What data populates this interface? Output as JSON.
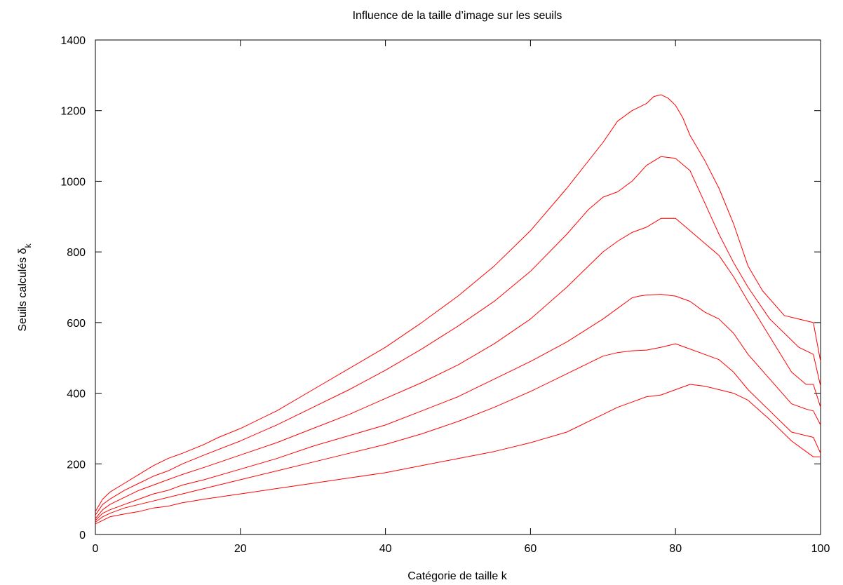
{
  "chart_data": {
    "type": "line",
    "title": "Influence de la taille d’image sur les seuils",
    "xlabel": "Catégorie de taille k",
    "ylabel_main": "Seuils calculés δ",
    "ylabel_sub": "k",
    "xlim": [
      0,
      100
    ],
    "ylim": [
      0,
      1400
    ],
    "x_ticks": [
      0,
      20,
      40,
      60,
      80,
      100
    ],
    "y_ticks": [
      0,
      200,
      400,
      600,
      800,
      1000,
      1200,
      1400
    ],
    "grid": false,
    "legend": "none",
    "color": "#ff0000",
    "series": [
      {
        "x": [
          0,
          1,
          2,
          4,
          6,
          8,
          10,
          12,
          15,
          17,
          20,
          25,
          30,
          35,
          40,
          45,
          50,
          55,
          60,
          65,
          70,
          72,
          74,
          76,
          77,
          78,
          79,
          80,
          81,
          82,
          84,
          86,
          88,
          90,
          92,
          95,
          99,
          100
        ],
        "values": [
          65,
          100,
          120,
          145,
          170,
          195,
          215,
          230,
          255,
          275,
          300,
          350,
          410,
          470,
          530,
          600,
          675,
          760,
          860,
          980,
          1110,
          1170,
          1200,
          1220,
          1240,
          1245,
          1235,
          1215,
          1180,
          1130,
          1060,
          980,
          880,
          760,
          690,
          620,
          600,
          490
        ]
      },
      {
        "x": [
          0,
          1,
          2,
          4,
          6,
          8,
          10,
          12,
          15,
          20,
          25,
          30,
          35,
          40,
          45,
          50,
          55,
          60,
          65,
          68,
          70,
          72,
          74,
          76,
          78,
          80,
          82,
          84,
          86,
          88,
          90,
          93,
          97,
          99,
          100
        ],
        "values": [
          55,
          85,
          100,
          125,
          145,
          165,
          180,
          200,
          225,
          265,
          310,
          360,
          410,
          465,
          525,
          590,
          660,
          745,
          850,
          920,
          955,
          970,
          1000,
          1045,
          1070,
          1065,
          1030,
          940,
          850,
          770,
          700,
          610,
          530,
          510,
          420
        ]
      },
      {
        "x": [
          0,
          1,
          2,
          4,
          6,
          8,
          10,
          12,
          15,
          20,
          25,
          30,
          35,
          40,
          45,
          50,
          55,
          60,
          65,
          70,
          72,
          74,
          76,
          78,
          80,
          82,
          84,
          86,
          88,
          90,
          93,
          96,
          98,
          99,
          100
        ],
        "values": [
          45,
          70,
          85,
          105,
          125,
          140,
          155,
          170,
          190,
          225,
          260,
          300,
          340,
          385,
          430,
          480,
          540,
          610,
          700,
          800,
          830,
          855,
          870,
          895,
          895,
          860,
          825,
          790,
          730,
          660,
          560,
          460,
          425,
          425,
          360
        ]
      },
      {
        "x": [
          0,
          1,
          2,
          4,
          6,
          8,
          10,
          12,
          15,
          20,
          25,
          30,
          35,
          40,
          45,
          50,
          55,
          60,
          65,
          70,
          72,
          74,
          75,
          76,
          78,
          80,
          82,
          84,
          86,
          88,
          90,
          93,
          96,
          98,
          99,
          100
        ],
        "values": [
          40,
          60,
          70,
          85,
          100,
          115,
          125,
          140,
          155,
          185,
          215,
          250,
          280,
          310,
          350,
          390,
          440,
          490,
          545,
          610,
          640,
          670,
          675,
          678,
          680,
          675,
          660,
          630,
          610,
          570,
          510,
          440,
          370,
          355,
          350,
          310
        ]
      },
      {
        "x": [
          0,
          1,
          2,
          4,
          6,
          8,
          10,
          12,
          15,
          20,
          25,
          30,
          35,
          40,
          45,
          50,
          55,
          60,
          65,
          70,
          72,
          74,
          76,
          78,
          80,
          82,
          84,
          86,
          88,
          90,
          93,
          96,
          98,
          99,
          100
        ],
        "values": [
          35,
          50,
          60,
          75,
          85,
          95,
          105,
          115,
          130,
          155,
          180,
          205,
          230,
          255,
          285,
          320,
          360,
          405,
          455,
          505,
          515,
          520,
          522,
          530,
          540,
          525,
          510,
          495,
          460,
          410,
          350,
          290,
          280,
          275,
          230
        ]
      },
      {
        "x": [
          0,
          1,
          2,
          4,
          6,
          8,
          10,
          12,
          15,
          20,
          25,
          30,
          35,
          40,
          45,
          50,
          55,
          60,
          65,
          70,
          72,
          74,
          76,
          78,
          80,
          82,
          84,
          86,
          88,
          90,
          93,
          96,
          98,
          99,
          100
        ],
        "values": [
          30,
          40,
          50,
          58,
          65,
          75,
          80,
          90,
          100,
          115,
          130,
          145,
          160,
          175,
          195,
          215,
          235,
          260,
          290,
          340,
          360,
          375,
          390,
          395,
          410,
          425,
          420,
          410,
          400,
          380,
          325,
          265,
          235,
          220,
          220
        ]
      }
    ]
  }
}
